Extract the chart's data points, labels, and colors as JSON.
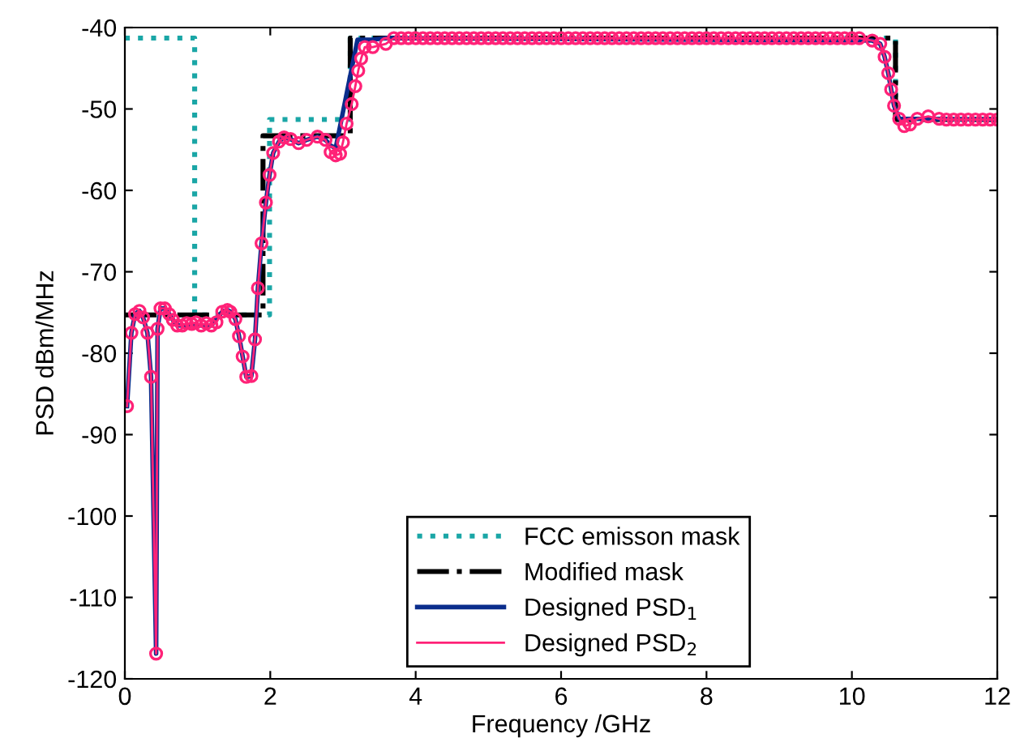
{
  "chart_data": {
    "type": "line",
    "xlabel": "Frequency /GHz",
    "ylabel": "PSD dBm/MHz",
    "xlim": [
      0,
      12
    ],
    "ylim": [
      -120,
      -40
    ],
    "xticks": [
      0,
      2,
      4,
      6,
      8,
      10,
      12
    ],
    "yticks": [
      -120,
      -110,
      -100,
      -90,
      -80,
      -70,
      -60,
      -50,
      -40
    ],
    "grid": false,
    "legend": "bottom",
    "series": [
      {
        "name": "FCC emisson mask",
        "type": "step",
        "color": "#1aa6a6",
        "line_style": "dotted",
        "marker": "none",
        "x": [
          0,
          0.96,
          1.99,
          3.1,
          10.6,
          12
        ],
        "values": [
          -41.3,
          -75.3,
          -51.3,
          -41.3,
          -51.3,
          -51.3
        ]
      },
      {
        "name": "Modified mask",
        "type": "step",
        "color": "#000000",
        "line_style": "dashdot",
        "marker": "none",
        "x": [
          0,
          1.9,
          3.1,
          10.6,
          12
        ],
        "values": [
          -75.3,
          -53.3,
          -41.3,
          -51.3,
          -51.3
        ]
      },
      {
        "name": "Designed PSD$_{1}$",
        "color": "#0a2d8c",
        "line_style": "solid",
        "marker": "none",
        "x": [
          0.03,
          0.09,
          0.14,
          0.2,
          0.25,
          0.31,
          0.36,
          0.43,
          0.45,
          0.49,
          0.55,
          0.61,
          0.66,
          0.72,
          0.79,
          1.05,
          1.19,
          1.34,
          1.41,
          1.45,
          1.52,
          1.57,
          1.62,
          1.67,
          1.74,
          1.79,
          1.83,
          1.88,
          1.94,
          1.99,
          2.04,
          2.12,
          2.19,
          2.28,
          2.39,
          2.5,
          2.65,
          2.76,
          2.83,
          2.9,
          3.2,
          3.4,
          3.6,
          10.28,
          10.39,
          10.45,
          10.5,
          10.54,
          10.58,
          10.65,
          12
        ],
        "values": [
          -86.5,
          -77.5,
          -75.2,
          -74.8,
          -75.6,
          -77.5,
          -82.9,
          -116.9,
          -77,
          -74.5,
          -74.5,
          -75.2,
          -75.9,
          -76.6,
          -76.6,
          -76.6,
          -76.6,
          -74.9,
          -74.7,
          -74.9,
          -75.8,
          -77.9,
          -80.4,
          -82.9,
          -82.8,
          -78.3,
          -72,
          -66.5,
          -61.5,
          -58.1,
          -55.4,
          -54,
          -53.5,
          -53.7,
          -54.2,
          -53.8,
          -53.4,
          -53.8,
          -54.5,
          -54.8,
          -41.5,
          -41.5,
          -41.3,
          -41.6,
          -42,
          -43.6,
          -45.6,
          -47.6,
          -49.6,
          -51.2,
          -51.3
        ]
      },
      {
        "name": "Designed PSD$_{2}$",
        "color": "#ff2277",
        "line_style": "solid",
        "marker": "circle",
        "x": [
          0.03,
          0.09,
          0.14,
          0.2,
          0.25,
          0.31,
          0.36,
          0.43,
          0.45,
          0.49,
          0.55,
          0.61,
          0.66,
          0.72,
          0.79,
          0.85,
          0.92,
          0.98,
          1.05,
          1.12,
          1.19,
          1.26,
          1.34,
          1.41,
          1.45,
          1.52,
          1.57,
          1.62,
          1.67,
          1.74,
          1.79,
          1.83,
          1.88,
          1.94,
          1.99,
          2.04,
          2.12,
          2.19,
          2.28,
          2.39,
          2.5,
          2.65,
          2.76,
          2.83,
          2.9,
          2.96,
          3.0,
          3.05,
          3.12,
          3.17,
          3.21,
          3.25,
          3.3,
          3.41,
          3.59,
          3.7,
          3.8,
          3.9,
          4.0,
          4.1,
          4.2,
          4.3,
          4.4,
          4.5,
          4.6,
          4.7,
          4.8,
          4.9,
          5.0,
          5.1,
          5.2,
          5.3,
          5.4,
          5.5,
          5.6,
          5.7,
          5.8,
          5.9,
          6.0,
          6.1,
          6.2,
          6.3,
          6.4,
          6.5,
          6.6,
          6.7,
          6.8,
          6.9,
          7.0,
          7.1,
          7.2,
          7.3,
          7.4,
          7.5,
          7.6,
          7.7,
          7.8,
          7.9,
          8.0,
          8.1,
          8.2,
          8.3,
          8.4,
          8.5,
          8.6,
          8.7,
          8.8,
          8.9,
          9.0,
          9.1,
          9.2,
          9.3,
          9.4,
          9.5,
          9.6,
          9.7,
          9.8,
          9.9,
          10.0,
          10.1,
          10.28,
          10.39,
          10.45,
          10.5,
          10.54,
          10.58,
          10.65,
          10.72,
          10.8,
          10.9,
          11.05,
          11.2,
          11.3,
          11.4,
          11.5,
          11.6,
          11.7,
          11.8,
          11.9,
          12.0
        ],
        "values": [
          -86.5,
          -77.5,
          -75.2,
          -74.8,
          -75.6,
          -77.5,
          -82.9,
          -116.9,
          -77,
          -74.5,
          -74.5,
          -75.2,
          -75.9,
          -76.6,
          -76.6,
          -76.3,
          -76.4,
          -76.2,
          -76.6,
          -76.3,
          -76.6,
          -76.2,
          -74.9,
          -74.7,
          -74.9,
          -75.8,
          -77.9,
          -80.4,
          -82.9,
          -82.8,
          -78.3,
          -72,
          -66.5,
          -61.5,
          -58.1,
          -55.4,
          -54,
          -53.5,
          -53.7,
          -54.2,
          -53.8,
          -53.4,
          -53.8,
          -55.3,
          -55.7,
          -55.5,
          -54.1,
          -51.8,
          -49.4,
          -47.2,
          -45.3,
          -43.8,
          -42.4,
          -42.4,
          -42,
          -41.3,
          -41.3,
          -41.3,
          -41.3,
          -41.3,
          -41.3,
          -41.3,
          -41.3,
          -41.3,
          -41.3,
          -41.3,
          -41.3,
          -41.3,
          -41.3,
          -41.3,
          -41.3,
          -41.3,
          -41.3,
          -41.3,
          -41.3,
          -41.3,
          -41.3,
          -41.3,
          -41.3,
          -41.3,
          -41.3,
          -41.3,
          -41.3,
          -41.3,
          -41.3,
          -41.3,
          -41.3,
          -41.3,
          -41.3,
          -41.3,
          -41.3,
          -41.3,
          -41.3,
          -41.3,
          -41.3,
          -41.3,
          -41.3,
          -41.3,
          -41.3,
          -41.3,
          -41.3,
          -41.3,
          -41.3,
          -41.3,
          -41.3,
          -41.3,
          -41.3,
          -41.3,
          -41.3,
          -41.3,
          -41.3,
          -41.3,
          -41.3,
          -41.3,
          -41.3,
          -41.3,
          -41.3,
          -41.3,
          -41.3,
          -41.3,
          -41.6,
          -42,
          -43.6,
          -45.6,
          -47.6,
          -49.6,
          -51.2,
          -52.1,
          -51.9,
          -51.2,
          -50.9,
          -51.2,
          -51.3,
          -51.3,
          -51.3,
          -51.3,
          -51.3,
          -51.3,
          -51.3,
          -51.3
        ]
      }
    ]
  }
}
